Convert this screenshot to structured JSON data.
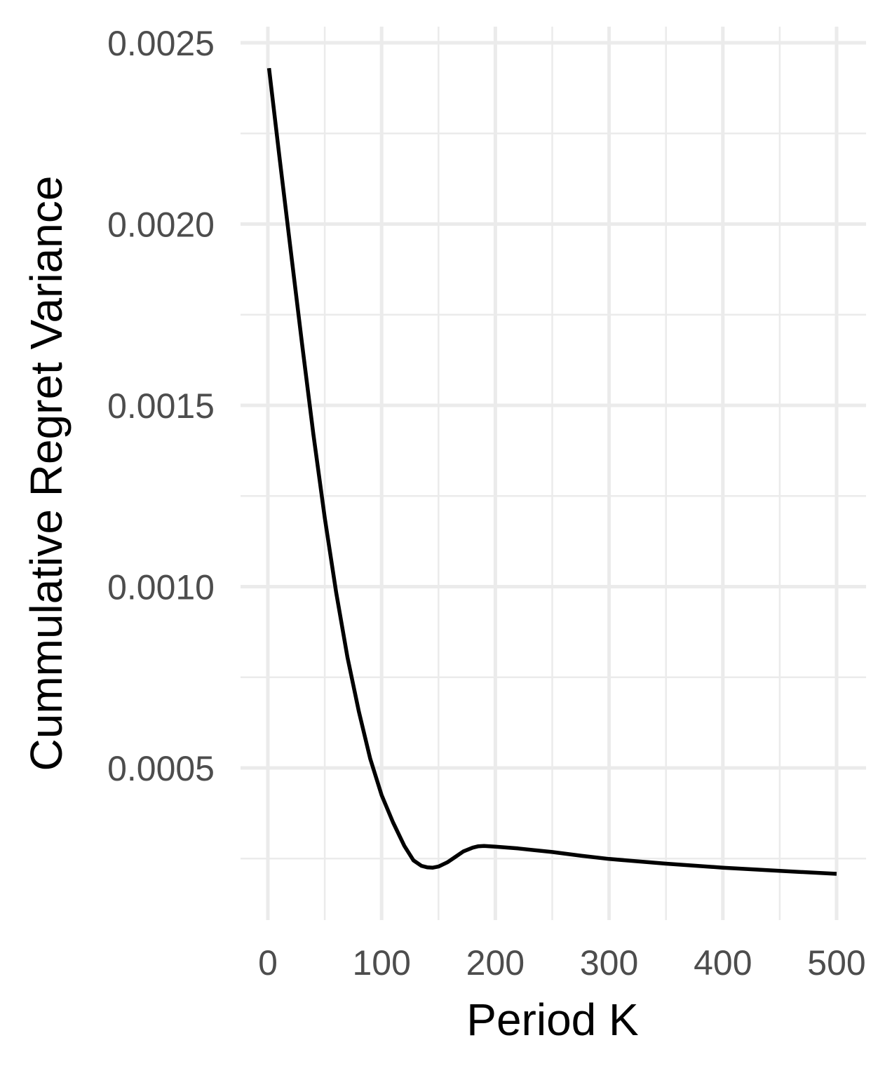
{
  "chart_data": {
    "type": "line",
    "title": "",
    "xlabel": "Period K",
    "ylabel": "Cummulative Regret Variance",
    "xlim": [
      0,
      500
    ],
    "ylim": [
      0.00023,
      0.0025
    ],
    "x_ticks": [
      0,
      100,
      200,
      300,
      400,
      500
    ],
    "x_tick_labels": [
      "0",
      "100",
      "200",
      "300",
      "400",
      "500"
    ],
    "y_ticks": [
      0.0005,
      0.001,
      0.0015,
      0.002,
      0.0025
    ],
    "y_tick_labels": [
      "0.0005",
      "0.0010",
      "0.0015",
      "0.0020",
      "0.0025"
    ],
    "grid": true,
    "legend": "none",
    "colors": {
      "line": "#000000",
      "grid": "#ebebeb",
      "tick_text": "#4d4d4d"
    },
    "series": [
      {
        "x": [
          1,
          10,
          20,
          30,
          40,
          50,
          60,
          70,
          80,
          90,
          100,
          110,
          120,
          128,
          135,
          140,
          145,
          150,
          158,
          165,
          172,
          180,
          185,
          190,
          200,
          220,
          250,
          275,
          300,
          350,
          400,
          450,
          500
        ],
        "y": [
          0.00243,
          0.00219,
          0.00193,
          0.00167,
          0.00142,
          0.00119,
          0.000985,
          0.000805,
          0.000655,
          0.000525,
          0.000425,
          0.00035,
          0.000285,
          0.000245,
          0.00023,
          0.000226,
          0.000225,
          0.000228,
          0.00024,
          0.000255,
          0.00027,
          0.00028,
          0.000284,
          0.000285,
          0.000283,
          0.000278,
          0.000268,
          0.000258,
          0.000249,
          0.000236,
          0.000225,
          0.000216,
          0.000208
        ]
      }
    ]
  }
}
